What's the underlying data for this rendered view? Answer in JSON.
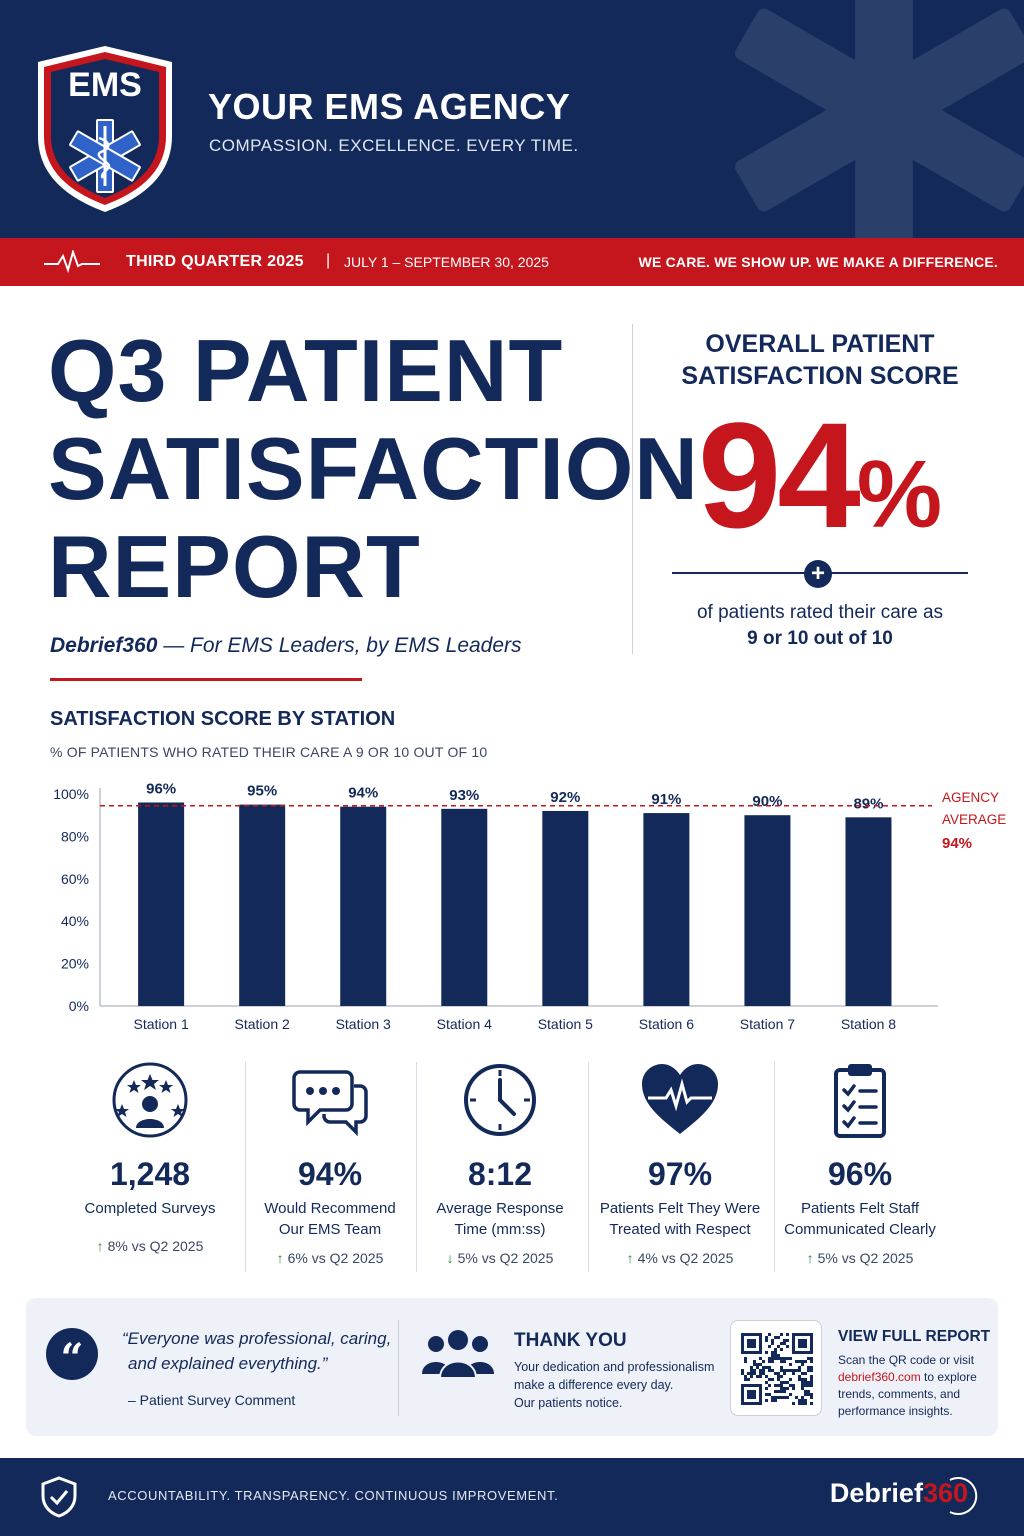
{
  "header": {
    "logo_text": "EMS",
    "agency_name": "YOUR EMS AGENCY",
    "tagline": "COMPASSION. EXCELLENCE. EVERY TIME."
  },
  "banner": {
    "quarter": "THIRD QUARTER 2025",
    "separator": "|",
    "dates": "JULY 1 – SEPTEMBER 30, 2025",
    "motto": "WE CARE. WE SHOW UP. WE MAKE A DIFFERENCE."
  },
  "report": {
    "title_line1": "Q3 PATIENT",
    "title_line2": "SATISFACTION",
    "title_line3": "REPORT",
    "subtitle_brand": "Debrief360",
    "subtitle_rest": " — For EMS Leaders, by EMS Leaders"
  },
  "overall": {
    "label_line1": "OVERALL PATIENT",
    "label_line2": "SATISFACTION SCORE",
    "value": "94",
    "unit": "%",
    "desc_line1": "of patients rated their care as",
    "desc_line2": "9 or 10 out of 10"
  },
  "chart_section": {
    "title": "SATISFACTION SCORE BY STATION",
    "subtitle": "% OF PATIENTS WHO RATED THEIR CARE A 9 OR 10 OUT OF 10"
  },
  "chart_data": {
    "type": "bar",
    "categories": [
      "Station 1",
      "Station 2",
      "Station 3",
      "Station 4",
      "Station 5",
      "Station 6",
      "Station 7",
      "Station 8"
    ],
    "values": [
      96,
      95,
      94,
      93,
      92,
      91,
      90,
      89
    ],
    "value_labels": [
      "96%",
      "95%",
      "94%",
      "93%",
      "92%",
      "91%",
      "90%",
      "89%"
    ],
    "y_ticks": [
      0,
      20,
      40,
      60,
      80,
      100
    ],
    "y_tick_labels": [
      "0%",
      "20%",
      "40%",
      "60%",
      "80%",
      "100%"
    ],
    "ylim": [
      0,
      100
    ],
    "reference_line": {
      "value": 94,
      "label_line1": "AGENCY",
      "label_line2": "AVERAGE",
      "label_value": "94%"
    },
    "bar_color": "#13295a",
    "reference_color": "#c4161c",
    "grid": false
  },
  "stats": [
    {
      "icon": "stars-person-icon",
      "value": "1,248",
      "label_line1": "Completed Surveys",
      "label_line2": "",
      "direction": "up",
      "arrow": "↑",
      "change": "8% vs Q2 2025"
    },
    {
      "icon": "speech-bubbles-icon",
      "value": "94%",
      "label_line1": "Would Recommend",
      "label_line2": "Our EMS Team",
      "direction": "up",
      "arrow": "↑",
      "change": "6% vs Q2 2025"
    },
    {
      "icon": "clock-icon",
      "value": "8:12",
      "label_line1": "Average Response",
      "label_line2": "Time (mm:ss)",
      "direction": "down",
      "arrow": "↓",
      "change": "5% vs Q2 2025"
    },
    {
      "icon": "heart-pulse-icon",
      "value": "97%",
      "label_line1": "Patients Felt They Were",
      "label_line2": "Treated with Respect",
      "direction": "up",
      "arrow": "↑",
      "change": "4% vs Q2 2025"
    },
    {
      "icon": "clipboard-checklist-icon",
      "value": "96%",
      "label_line1": "Patients Felt Staff",
      "label_line2": "Communicated Clearly",
      "direction": "up",
      "arrow": "↑",
      "change": "5% vs Q2 2025"
    }
  ],
  "quote": {
    "mark": "“",
    "line1": "“Everyone was professional, caring,",
    "line2": "and explained everything.”",
    "attribution": "– Patient Survey Comment"
  },
  "thank_you": {
    "title": "THANK YOU",
    "line1": "Your dedication and professionalism",
    "line2": "make a difference every day.",
    "line3": "Our patients notice."
  },
  "full_report": {
    "title": "VIEW FULL REPORT",
    "text_before": "Scan the QR code or visit",
    "link": "debrief360.com",
    "text_after": " to explore trends, comments, and performance insights."
  },
  "footer": {
    "motto": "ACCOUNTABILITY. TRANSPARENCY. CONTINUOUS IMPROVEMENT.",
    "brand_text": "Debrief",
    "brand_num": "360"
  },
  "colors": {
    "navy": "#13295a",
    "red": "#c4161c",
    "green_arrow": "#2a8a3e",
    "panel_bg": "#eef1f7"
  }
}
